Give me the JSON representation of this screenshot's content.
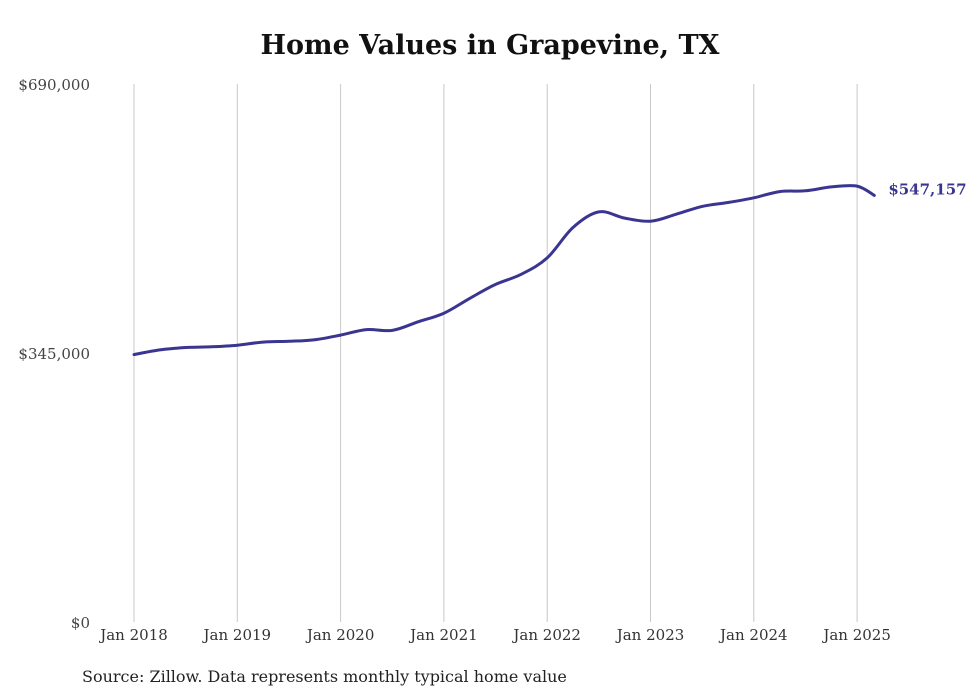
{
  "chart_data": {
    "type": "line",
    "title": "Home Values in Grapevine, TX",
    "source": "Source: Zillow. Data represents monthly typical home value",
    "xlabel": "",
    "ylabel": "",
    "ylim": [
      0,
      690000
    ],
    "y_ticks": [
      0,
      345000,
      690000
    ],
    "y_tick_labels": [
      "$0",
      "$345,000",
      "$690,000"
    ],
    "x_ticks": [
      "2018-01",
      "2019-01",
      "2020-01",
      "2021-01",
      "2022-01",
      "2023-01",
      "2024-01",
      "2025-01"
    ],
    "x_tick_labels": [
      "Jan 2018",
      "Jan 2019",
      "Jan 2020",
      "Jan 2021",
      "Jan 2022",
      "Jan 2023",
      "Jan 2024",
      "Jan 2025"
    ],
    "grid": "vertical",
    "color": "#3a3590",
    "end_label": "$547,157",
    "series": [
      {
        "x": [
          "2018-01",
          "2018-04",
          "2018-07",
          "2018-10",
          "2019-01",
          "2019-04",
          "2019-07",
          "2019-10",
          "2020-01",
          "2020-04",
          "2020-07",
          "2020-10",
          "2021-01",
          "2021-04",
          "2021-07",
          "2021-10",
          "2022-01",
          "2022-04",
          "2022-07",
          "2022-10",
          "2023-01",
          "2023-04",
          "2023-07",
          "2023-10",
          "2024-01",
          "2024-04",
          "2024-07",
          "2024-10",
          "2025-01",
          "2025-03"
        ],
        "y": [
          343000,
          349000,
          352000,
          353000,
          355000,
          359000,
          360000,
          362000,
          368000,
          375000,
          374000,
          385000,
          396000,
          415000,
          433000,
          446000,
          467000,
          506000,
          526000,
          518000,
          514000,
          523000,
          533000,
          538000,
          544000,
          552000,
          553000,
          558000,
          559000,
          547157
        ]
      }
    ]
  }
}
